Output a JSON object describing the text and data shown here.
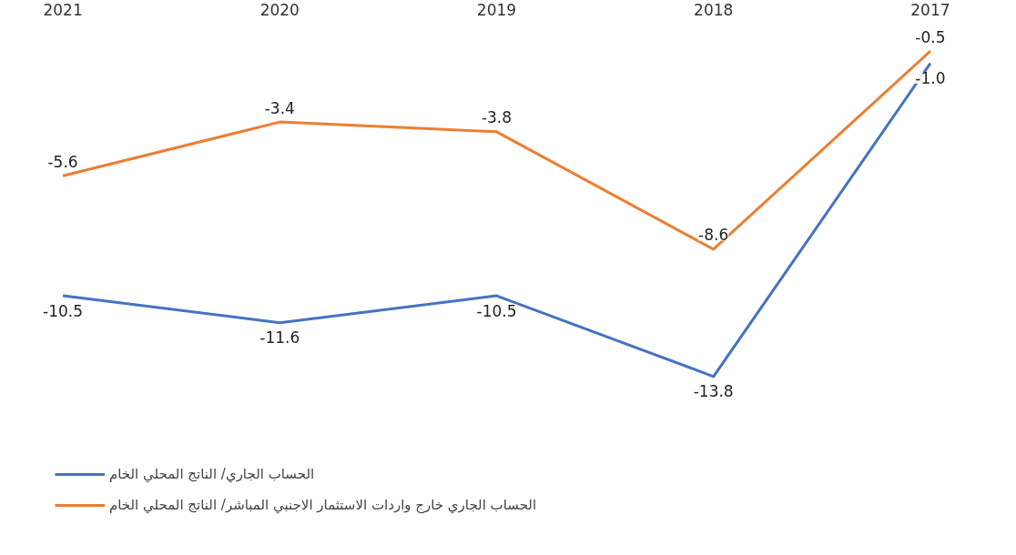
{
  "chart_data": {
    "type": "line",
    "categories": [
      "2021",
      "2020",
      "2019",
      "2018",
      "2017"
    ],
    "series": [
      {
        "name": "الحساب الجاري/ الناتج المحلي الخام",
        "color": "#4472c4",
        "values": [
          -10.5,
          -11.6,
          -10.5,
          -13.8,
          -1.0
        ],
        "value_labels": [
          "-10.5",
          "-11.6",
          "-10.5",
          "-13.8",
          "-1.0"
        ]
      },
      {
        "name": "الحساب الجاري خارج واردات الاستثمار الاجنبي المباشر/ الناتج المحلي الخام",
        "color": "#ed7d31",
        "values": [
          -5.6,
          -3.4,
          -3.8,
          -8.6,
          -0.5
        ],
        "value_labels": [
          "-5.6",
          "-3.4",
          "-3.8",
          "-8.6",
          "-0.5"
        ]
      }
    ],
    "legend": "bottom",
    "grid": false,
    "marker": "none",
    "line_style": "solid"
  }
}
